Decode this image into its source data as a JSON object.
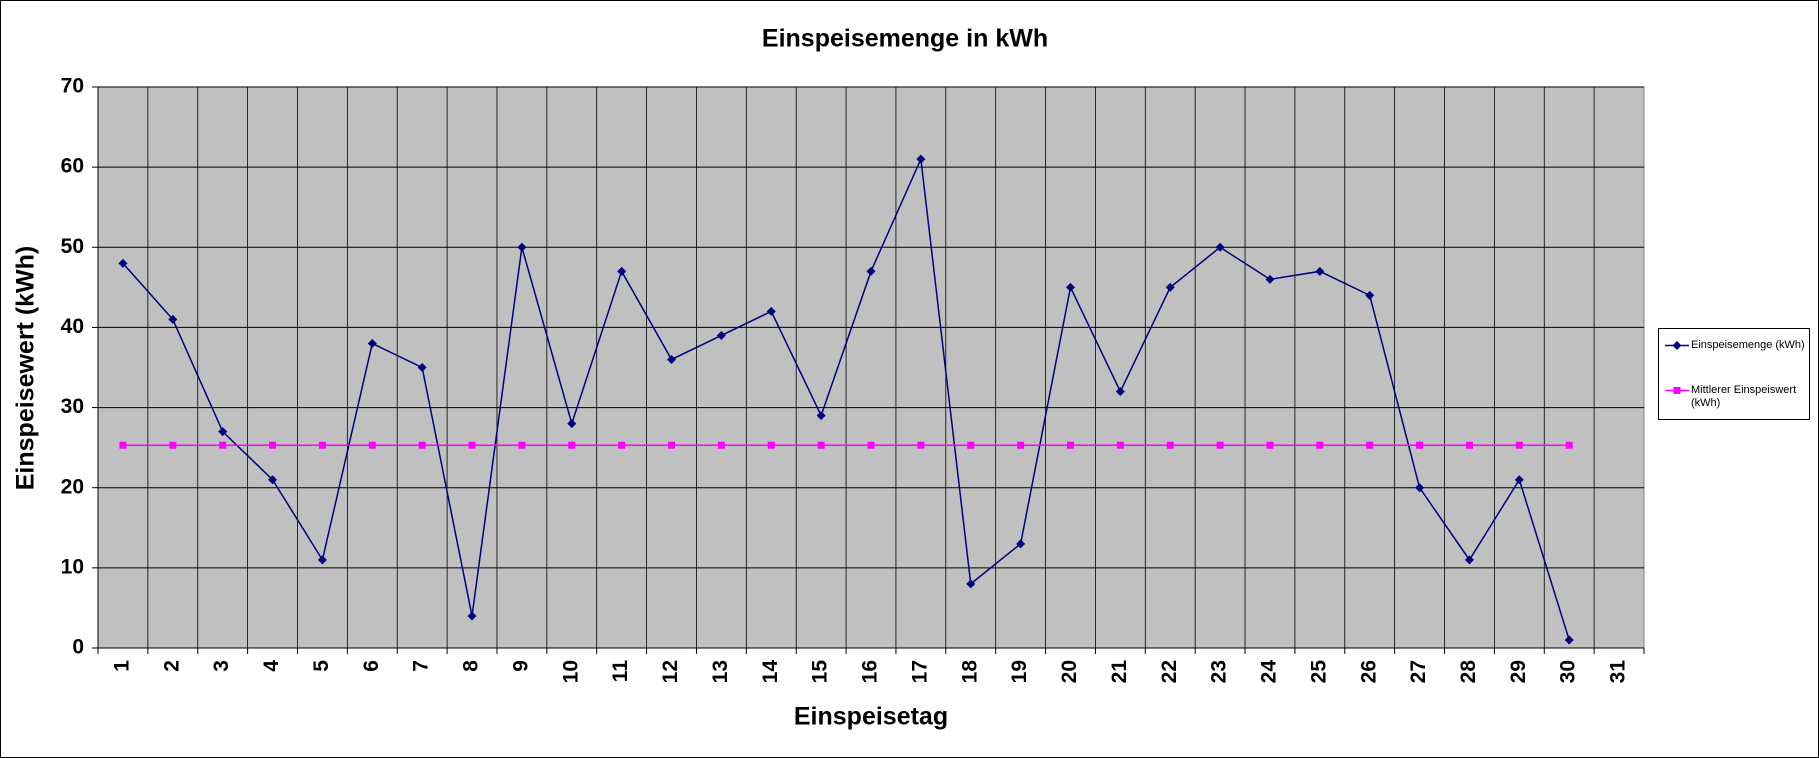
{
  "chart_data": {
    "type": "line",
    "title": "Einspeisemenge in kWh",
    "xlabel": "Einspeisetag",
    "ylabel": "Einspeisewert  (kWh)",
    "categories": [
      1,
      2,
      3,
      4,
      5,
      6,
      7,
      8,
      9,
      10,
      11,
      12,
      13,
      14,
      15,
      16,
      17,
      18,
      19,
      20,
      21,
      22,
      23,
      24,
      25,
      26,
      27,
      28,
      29,
      30,
      31
    ],
    "series": [
      {
        "name": "Einspeisemenge (kWh)",
        "color": "#000080",
        "marker": "diamond",
        "values": [
          48,
          41,
          27,
          21,
          11,
          38,
          35,
          4,
          50,
          28,
          47,
          36,
          39,
          42,
          29,
          47,
          61,
          8,
          13,
          45,
          32,
          45,
          50,
          46,
          47,
          44,
          20,
          11,
          21,
          1,
          null
        ]
      },
      {
        "name": "Mittlerer Einspeiswert (kWh)",
        "color": "#ff00ff",
        "marker": "square",
        "values": [
          25.3,
          25.3,
          25.3,
          25.3,
          25.3,
          25.3,
          25.3,
          25.3,
          25.3,
          25.3,
          25.3,
          25.3,
          25.3,
          25.3,
          25.3,
          25.3,
          25.3,
          25.3,
          25.3,
          25.3,
          25.3,
          25.3,
          25.3,
          25.3,
          25.3,
          25.3,
          25.3,
          25.3,
          25.3,
          25.3,
          null
        ]
      }
    ],
    "ylim": [
      0,
      70
    ],
    "yticks": [
      0,
      10,
      20,
      30,
      40,
      50,
      60,
      70
    ],
    "grid": true,
    "plot_background": "#c0c0c0",
    "legend": "right"
  }
}
